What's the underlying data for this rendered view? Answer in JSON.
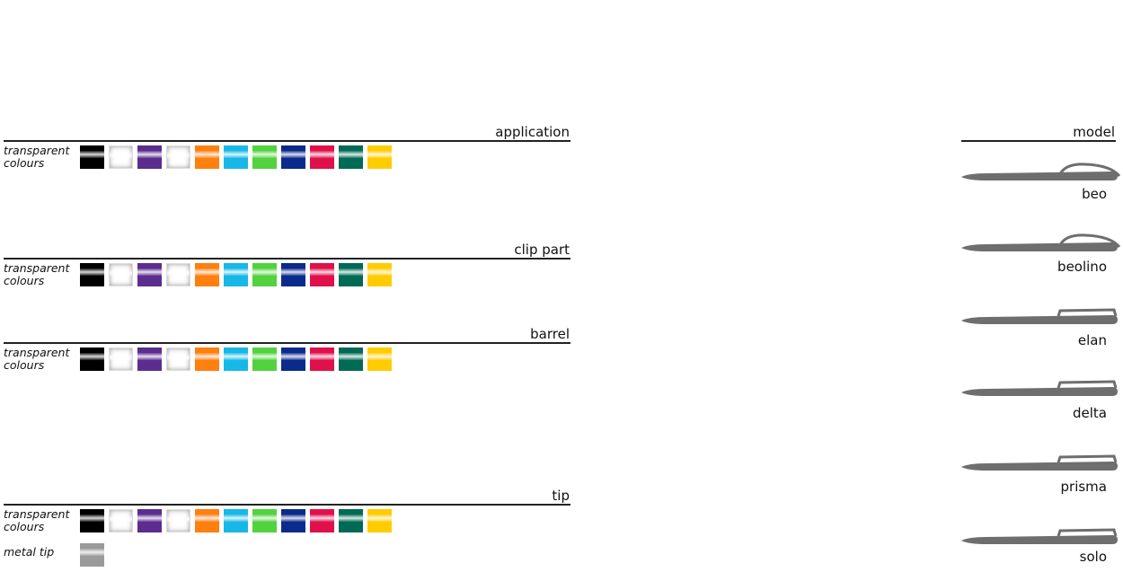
{
  "sections": [
    {
      "title": "application",
      "rows": [
        {
          "label": "transparent colours",
          "swatches": [
            "#000000",
            "#ffffff",
            "#5b2d8e",
            "#ffffff",
            "#ff7f0f",
            "#17b8e8",
            "#52d23f",
            "#0a2a8c",
            "#e0104b",
            "#006a55",
            "#ffcc00"
          ]
        }
      ]
    },
    {
      "title": "clip part",
      "rows": [
        {
          "label": "transparent colours",
          "swatches": [
            "#000000",
            "#ffffff",
            "#5b2d8e",
            "#ffffff",
            "#ff7f0f",
            "#17b8e8",
            "#52d23f",
            "#0a2a8c",
            "#e0104b",
            "#006a55",
            "#ffcc00"
          ]
        }
      ]
    },
    {
      "title": "barrel",
      "rows": [
        {
          "label": "transparent colours",
          "swatches": [
            "#000000",
            "#ffffff",
            "#5b2d8e",
            "#ffffff",
            "#ff7f0f",
            "#17b8e8",
            "#52d23f",
            "#0a2a8c",
            "#e0104b",
            "#006a55",
            "#ffcc00"
          ]
        }
      ]
    },
    {
      "title": "tip",
      "rows": [
        {
          "label": "transparent colours",
          "swatches": [
            "#000000",
            "#ffffff",
            "#5b2d8e",
            "#ffffff",
            "#ff7f0f",
            "#17b8e8",
            "#52d23f",
            "#0a2a8c",
            "#e0104b",
            "#006a55",
            "#ffcc00"
          ]
        },
        {
          "label": "metal tip",
          "swatches": [
            "#9a9a9a"
          ]
        }
      ]
    }
  ],
  "model": {
    "title": "model",
    "items": [
      "beo",
      "beolino",
      "elan",
      "delta",
      "prisma",
      "solo"
    ]
  }
}
